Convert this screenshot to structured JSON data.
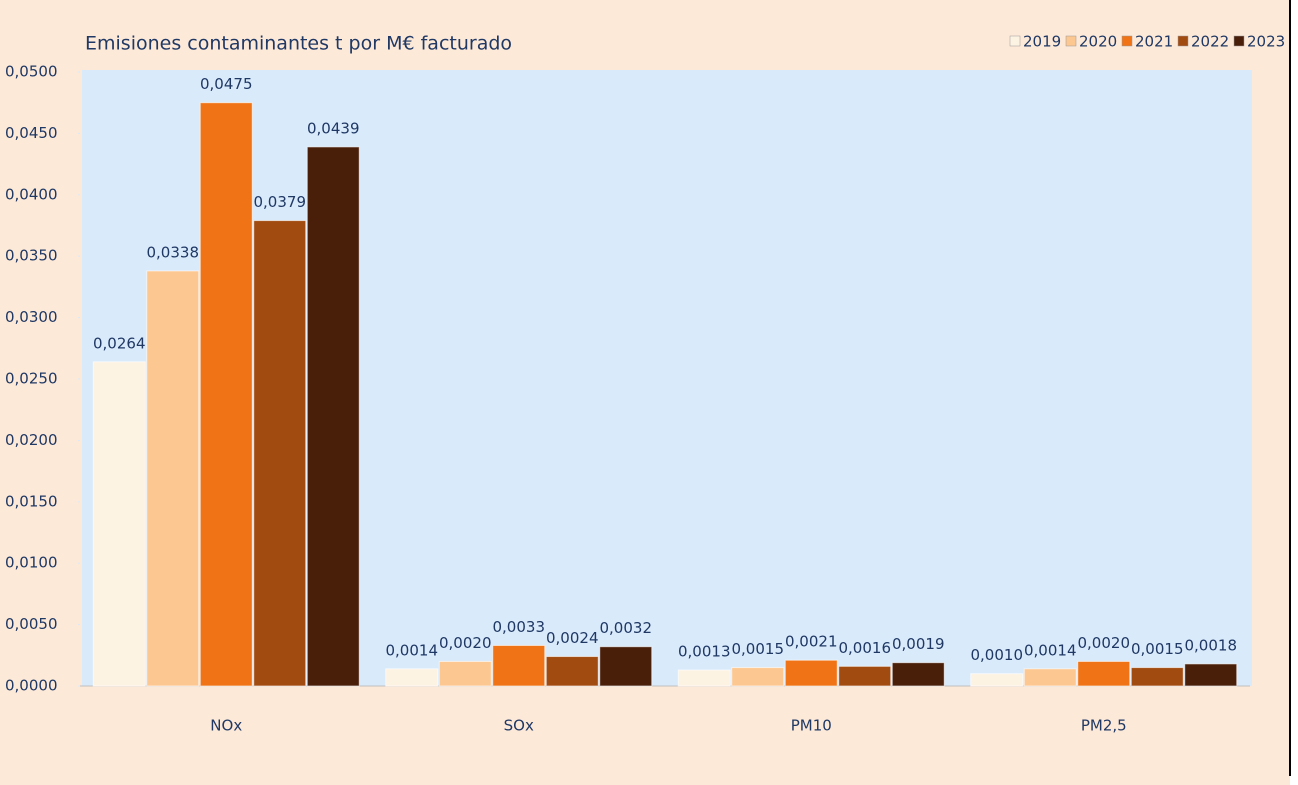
{
  "chart_data": {
    "type": "bar",
    "title": "Emisiones contaminantes t por M€ facturado",
    "categories": [
      "NOx",
      "SOx",
      "PM10",
      "PM2,5"
    ],
    "series": [
      {
        "name": "2019",
        "color": "#fdf3e3",
        "values": [
          0.0264,
          0.0014,
          0.0013,
          0.001
        ],
        "value_labels": [
          "0,0264",
          "0,0014",
          "0,0013",
          "0,0010"
        ]
      },
      {
        "name": "2020",
        "color": "#fdc791",
        "values": [
          0.0338,
          0.002,
          0.0015,
          0.0014
        ],
        "value_labels": [
          "0,0338",
          "0,0020",
          "0,0015",
          "0,0014"
        ]
      },
      {
        "name": "2021",
        "color": "#f07416",
        "values": [
          0.0475,
          0.0033,
          0.0021,
          0.002
        ],
        "value_labels": [
          "0,0475",
          "0,0033",
          "0,0021",
          "0,0020"
        ]
      },
      {
        "name": "2022",
        "color": "#a24b10",
        "values": [
          0.0379,
          0.0024,
          0.0016,
          0.0015
        ],
        "value_labels": [
          "0,0379",
          "0,0024",
          "0,0016",
          "0,0015"
        ]
      },
      {
        "name": "2023",
        "color": "#4a1f0a",
        "values": [
          0.0439,
          0.0032,
          0.0019,
          0.0018
        ],
        "value_labels": [
          "0,0439",
          "0,0032",
          "0,0019",
          "0,0018"
        ]
      }
    ],
    "ylim": [
      0,
      0.05
    ],
    "yticks": [
      {
        "value": 0,
        "label": "0,0000"
      },
      {
        "value": 0.005,
        "label": "0,0050"
      },
      {
        "value": 0.01,
        "label": "0,0100"
      },
      {
        "value": 0.015,
        "label": "0,0150"
      },
      {
        "value": 0.02,
        "label": "0,0200"
      },
      {
        "value": 0.025,
        "label": "0,0250"
      },
      {
        "value": 0.03,
        "label": "0,0300"
      },
      {
        "value": 0.035,
        "label": "0,0350"
      },
      {
        "value": 0.04,
        "label": "0,0400"
      },
      {
        "value": 0.045,
        "label": "0,0450"
      },
      {
        "value": 0.05,
        "label": "0,0500"
      }
    ],
    "grid": false,
    "legend": "top-right"
  }
}
